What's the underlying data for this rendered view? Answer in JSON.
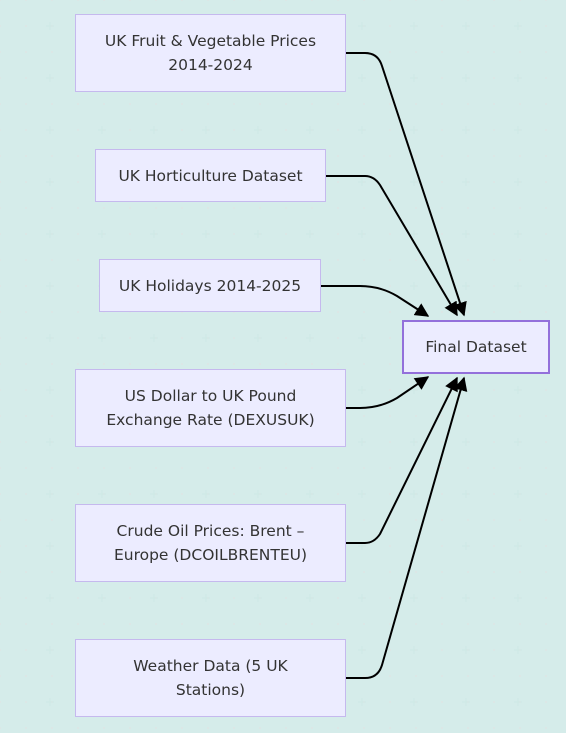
{
  "diagram": {
    "nodes": [
      {
        "id": "fruit",
        "label": "UK Fruit & Vegetable Prices\n2014-2024"
      },
      {
        "id": "horticulture",
        "label": "UK Horticulture Dataset"
      },
      {
        "id": "holidays",
        "label": "UK Holidays 2014-2025"
      },
      {
        "id": "exchange",
        "label": "US Dollar to UK Pound\nExchange Rate (DEXUSUK)"
      },
      {
        "id": "oil",
        "label": "Crude Oil Prices: Brent –\nEurope (DCOILBRENTEU)"
      },
      {
        "id": "weather",
        "label": "Weather Data (5 UK\nStations)"
      },
      {
        "id": "final",
        "label": "Final Dataset"
      }
    ],
    "edges": [
      {
        "from": "fruit",
        "to": "final"
      },
      {
        "from": "horticulture",
        "to": "final"
      },
      {
        "from": "holidays",
        "to": "final"
      },
      {
        "from": "exchange",
        "to": "final"
      },
      {
        "from": "oil",
        "to": "final"
      },
      {
        "from": "weather",
        "to": "final"
      }
    ],
    "colors": {
      "node_fill": "#ececff",
      "node_border": "#c5b9ee",
      "final_border": "#9370db",
      "edge": "#000000",
      "text": "#333333"
    }
  }
}
